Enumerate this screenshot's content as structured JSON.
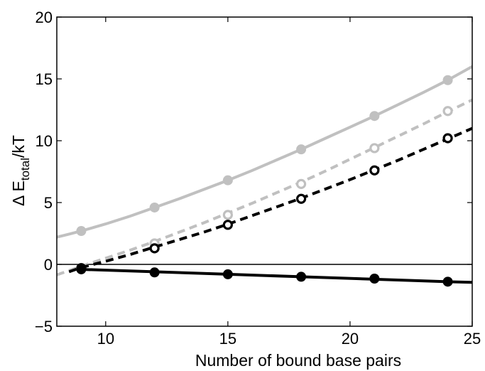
{
  "chart_data": {
    "type": "line",
    "title": "",
    "xlabel": "Number of bound base pairs",
    "ylabel_main": "Δ E",
    "ylabel_sub": "total",
    "ylabel_tail": "/kT",
    "xlim": [
      8,
      25
    ],
    "ylim": [
      -5,
      20
    ],
    "xticks": [
      10,
      15,
      20,
      25
    ],
    "yticks": [
      -5,
      0,
      5,
      10,
      15,
      20
    ],
    "xtick_labels": [
      "10",
      "15",
      "20",
      "25"
    ],
    "ytick_labels": [
      "−5",
      "0",
      "5",
      "10",
      "15",
      "20"
    ],
    "grid": false,
    "legend": false,
    "reference_line_y": 0,
    "series": [
      {
        "color": "#c0c0c0",
        "line_style": "solid",
        "marker": "filled-circle",
        "points_x": [
          9,
          12,
          15,
          18,
          21,
          24
        ],
        "points_y": [
          2.7,
          4.6,
          6.8,
          9.3,
          12.0,
          14.9
        ],
        "curve_x": [
          8.0,
          8.5,
          9.0,
          9.5,
          10.0,
          11.0,
          12.0,
          13.0,
          14.0,
          15.0,
          16.0,
          17.0,
          18.0,
          19.0,
          20.0,
          21.0,
          22.0,
          23.0,
          24.0,
          25.0
        ],
        "curve_y": [
          2.2,
          2.45,
          2.7,
          2.98,
          3.27,
          3.9,
          4.6,
          5.3,
          6.05,
          6.8,
          7.6,
          8.45,
          9.3,
          10.2,
          11.1,
          12.0,
          12.95,
          13.9,
          14.9,
          16.0
        ]
      },
      {
        "color": "#c0c0c0",
        "line_style": "dashed",
        "marker": "open-circle",
        "points_x": [
          9,
          12,
          15,
          18,
          21,
          24
        ],
        "points_y": [
          -0.3,
          1.7,
          4.0,
          6.5,
          9.4,
          12.4
        ],
        "curve_x": [
          8.0,
          9.0,
          10.0,
          11.0,
          12.0,
          13.0,
          14.0,
          15.0,
          16.0,
          17.0,
          18.0,
          19.0,
          20.0,
          21.0,
          22.0,
          23.0,
          24.0,
          25.0
        ],
        "curve_y": [
          -0.85,
          -0.15,
          0.5,
          1.15,
          1.85,
          2.6,
          3.35,
          4.15,
          4.95,
          5.8,
          6.65,
          7.55,
          8.5,
          9.45,
          10.4,
          11.35,
          12.35,
          13.3
        ]
      },
      {
        "color": "#000000",
        "line_style": "dashed",
        "marker": "open-circle",
        "points_x": [
          9,
          12,
          15,
          18,
          21,
          24
        ],
        "points_y": [
          -0.3,
          1.3,
          3.2,
          5.3,
          7.6,
          10.2
        ],
        "curve_x": [
          8.5,
          9.0,
          10.0,
          11.0,
          12.0,
          13.0,
          14.0,
          15.0,
          16.0,
          17.0,
          18.0,
          19.0,
          20.0,
          21.0,
          22.0,
          23.0,
          24.0,
          25.0
        ],
        "curve_y": [
          -0.6,
          -0.25,
          0.25,
          0.8,
          1.4,
          2.0,
          2.6,
          3.25,
          3.95,
          4.65,
          5.35,
          6.1,
          6.85,
          7.65,
          8.45,
          9.3,
          10.15,
          11.0
        ]
      },
      {
        "color": "#000000",
        "line_style": "solid",
        "marker": "filled-circle",
        "points_x": [
          9,
          12,
          15,
          18,
          21,
          24
        ],
        "points_y": [
          -0.4,
          -0.65,
          -0.8,
          -1.0,
          -1.15,
          -1.4
        ],
        "curve_x": [
          9.0,
          12.0,
          15.0,
          18.0,
          21.0,
          24.0,
          25.0
        ],
        "curve_y": [
          -0.4,
          -0.6,
          -0.8,
          -1.0,
          -1.2,
          -1.4,
          -1.45
        ]
      }
    ]
  }
}
